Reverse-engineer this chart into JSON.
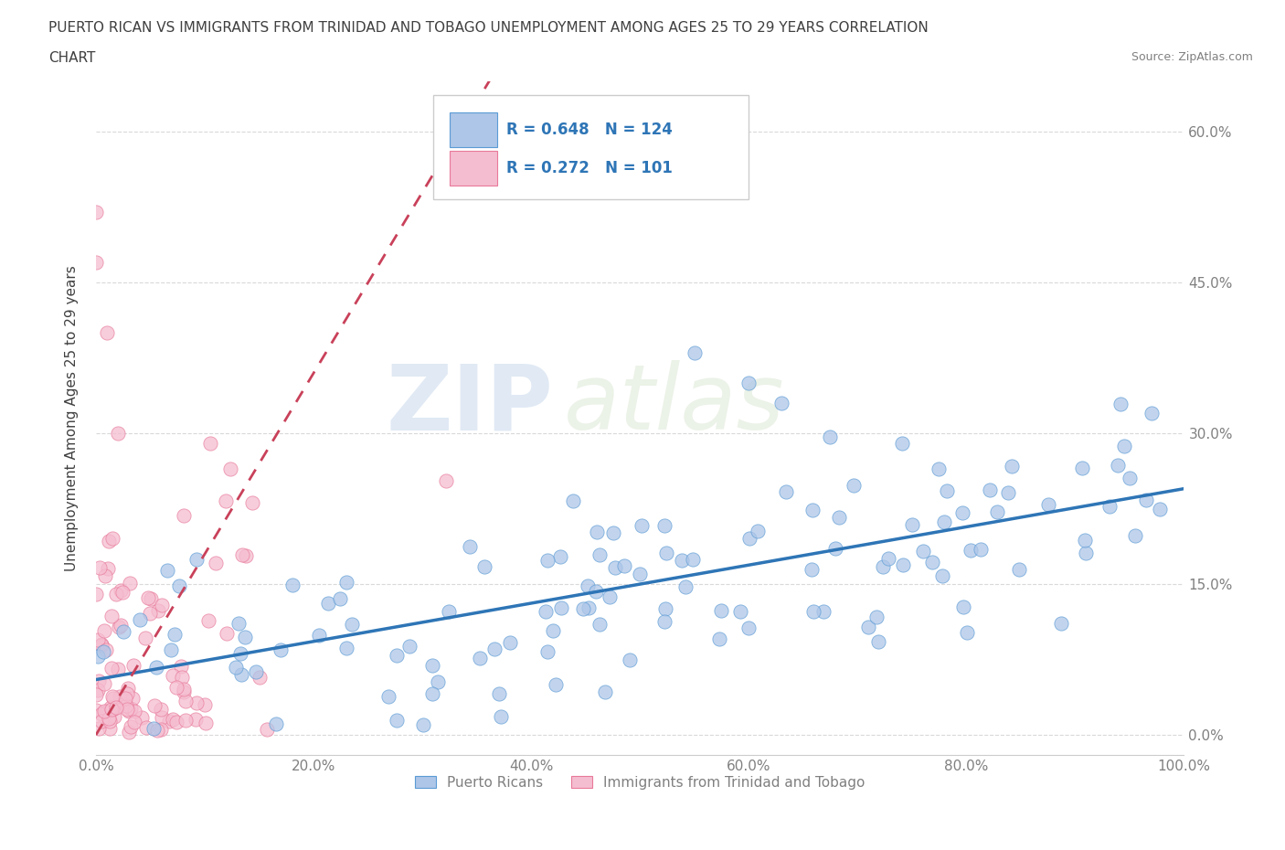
{
  "title_line1": "PUERTO RICAN VS IMMIGRANTS FROM TRINIDAD AND TOBAGO UNEMPLOYMENT AMONG AGES 25 TO 29 YEARS CORRELATION",
  "title_line2": "CHART",
  "source_text": "Source: ZipAtlas.com",
  "ylabel": "Unemployment Among Ages 25 to 29 years",
  "xlim": [
    0.0,
    1.0
  ],
  "ylim": [
    -0.02,
    0.65
  ],
  "x_ticks": [
    0.0,
    0.2,
    0.4,
    0.6,
    0.8,
    1.0
  ],
  "x_tick_labels": [
    "0.0%",
    "20.0%",
    "40.0%",
    "60.0%",
    "80.0%",
    "100.0%"
  ],
  "y_ticks": [
    0.0,
    0.15,
    0.3,
    0.45,
    0.6
  ],
  "y_tick_labels": [
    "0.0%",
    "15.0%",
    "30.0%",
    "45.0%",
    "60.0%"
  ],
  "blue_R": 0.648,
  "blue_N": 124,
  "pink_R": 0.272,
  "pink_N": 101,
  "blue_color": "#aec6e8",
  "pink_color": "#f5bdd0",
  "blue_edge_color": "#5b9bd5",
  "pink_edge_color": "#e8799a",
  "blue_line_color": "#2e75b6",
  "pink_line_color": "#c9415a",
  "legend_label_blue": "Puerto Ricans",
  "legend_label_pink": "Immigrants from Trinidad and Tobago",
  "watermark_zip": "ZIP",
  "watermark_atlas": "atlas",
  "background_color": "#ffffff",
  "grid_color": "#d9d9d9",
  "title_color": "#404040",
  "axis_label_color": "#404040",
  "tick_color": "#808080",
  "legend_text_color": "#2e75b6",
  "blue_trend_intercept": 0.055,
  "blue_trend_slope": 0.19,
  "pink_trend_intercept": 0.0,
  "pink_trend_slope": 1.8
}
